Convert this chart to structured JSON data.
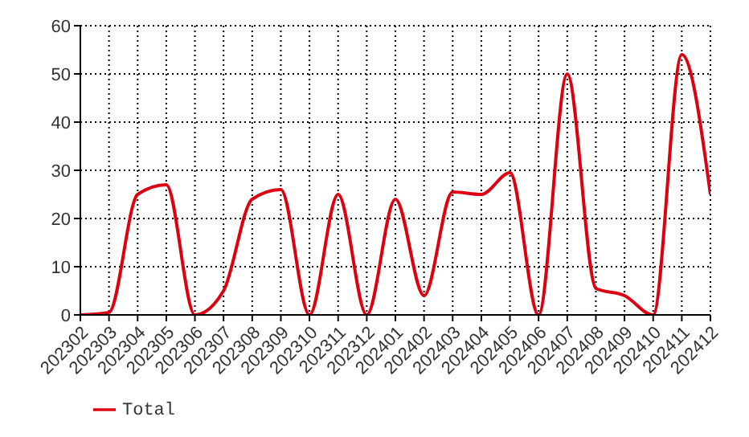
{
  "chart_data": {
    "type": "line",
    "categories": [
      "202302",
      "202303",
      "202304",
      "202305",
      "202306",
      "202307",
      "202308",
      "202309",
      "202310",
      "202311",
      "202312",
      "202401",
      "202402",
      "202403",
      "202404",
      "202405",
      "202406",
      "202407",
      "202408",
      "202409",
      "202410",
      "202411",
      "202412"
    ],
    "series": [
      {
        "name": "Total",
        "color": "#dd0011",
        "values": [
          0,
          0.5,
          25,
          27,
          0,
          5,
          24,
          26,
          0,
          25,
          0,
          24,
          4,
          25.5,
          25,
          29.5,
          0,
          50,
          5.5,
          4,
          0,
          54,
          25
        ]
      }
    ],
    "ylim": [
      0,
      60
    ],
    "yticks": [
      0,
      10,
      20,
      30,
      40,
      50,
      60
    ],
    "grid": true,
    "legend": "bottom left",
    "marker": "none",
    "line_style": "solid"
  }
}
